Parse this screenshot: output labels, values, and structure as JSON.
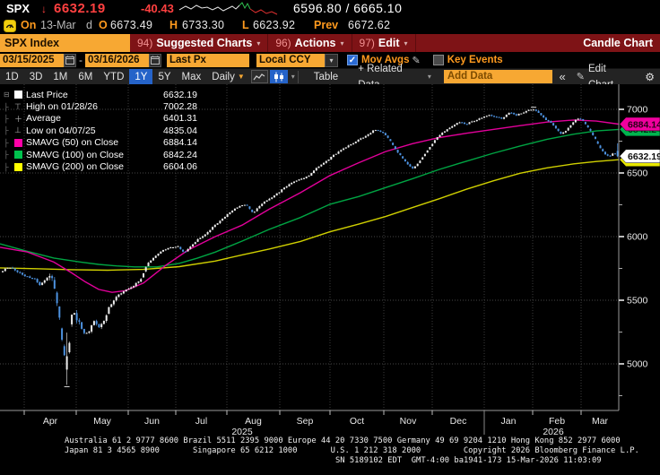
{
  "header": {
    "ticker": "SPX",
    "direction_arrow": "↓",
    "last_price": "6632.19",
    "change": "-40.43",
    "bid_ask": "6596.80 / 6665.10",
    "session": {
      "on_label": "On",
      "date": "13-Mar",
      "freq_flag": "d",
      "open_label": "O",
      "open": "6673.49",
      "high_label": "H",
      "high": "6733.30",
      "low_label": "L",
      "low": "6623.92",
      "prev_label": "Prev",
      "prev": "6672.62"
    },
    "sparkline": {
      "white": [
        [
          0,
          10
        ],
        [
          7,
          6
        ],
        [
          13,
          9
        ],
        [
          19,
          5
        ],
        [
          25,
          8
        ],
        [
          31,
          7
        ],
        [
          37,
          10
        ],
        [
          43,
          7
        ],
        [
          49,
          11
        ],
        [
          55,
          8
        ],
        [
          59,
          6
        ],
        [
          63,
          9
        ],
        [
          67,
          5
        ]
      ],
      "green": [
        [
          67,
          5
        ],
        [
          70,
          2
        ],
        [
          73,
          8
        ],
        [
          76,
          3
        ],
        [
          79,
          9
        ]
      ],
      "red": [
        [
          79,
          9
        ],
        [
          85,
          13
        ],
        [
          91,
          10
        ],
        [
          97,
          14
        ],
        [
          103,
          12
        ],
        [
          109,
          15
        ]
      ]
    }
  },
  "menubar": {
    "security": "SPX Index",
    "items": [
      {
        "num": "94)",
        "label": "Suggested Charts",
        "arrow": "▾"
      },
      {
        "num": "96)",
        "label": "Actions",
        "arrow": "▾"
      },
      {
        "num": "97)",
        "label": "Edit",
        "arrow": "▾"
      }
    ],
    "right_label": "Candle Chart"
  },
  "filterbar": {
    "date_from": "03/15/2025",
    "dash": "-",
    "date_to": "03/16/2026",
    "price_field": "Last Px",
    "currency": "Local CCY",
    "currency_arrow": "▾",
    "mov_avgs_checked": "✓",
    "mov_avgs_label": "Mov Avgs",
    "pencil": "✎",
    "key_events_label": "Key Events"
  },
  "toolbar": {
    "ranges": [
      "1D",
      "3D",
      "1M",
      "6M",
      "YTD",
      "1Y",
      "5Y",
      "Max"
    ],
    "selected_range": "1Y",
    "frequency": "Daily",
    "frequency_arrow": "▼",
    "chart_style_arrow": "▾",
    "table_label": "Table",
    "related_data_label": "+ Related Data",
    "related_arrow": "▾",
    "add_data_placeholder": "Add Data",
    "collapse_label": "«",
    "edit_pencil": "✎",
    "edit_chart_label": "Edit Chart",
    "gear": "⚙"
  },
  "legend": {
    "rows": [
      {
        "marker": "square",
        "color": "#ffffff",
        "label": "Last Price",
        "value": "6632.19"
      },
      {
        "marker": "high",
        "label": "High on 01/28/26",
        "value": "7002.28"
      },
      {
        "marker": "avg",
        "label": "Average",
        "value": "6401.31"
      },
      {
        "marker": "low",
        "label": "Low on 04/07/25",
        "value": "4835.04"
      },
      {
        "marker": "square",
        "color": "#ff00a8",
        "label": "SMAVG (50)  on Close",
        "value": "6884.14"
      },
      {
        "marker": "square",
        "color": "#00c24e",
        "label": "SMAVG (100)  on Close",
        "value": "6842.24"
      },
      {
        "marker": "square",
        "color": "#ffff00",
        "label": "SMAVG (200)  on Close",
        "value": "6604.06"
      }
    ]
  },
  "chart_data": {
    "type": "candle",
    "symbol": "SPX Index",
    "period": "03/15/2025 - 03/16/2026",
    "frequency": "Daily",
    "y_ticks": [
      7000,
      6500,
      6000,
      5500,
      5000
    ],
    "y_minor_ticks": [
      6750,
      6250,
      5750,
      5250,
      4750
    ],
    "x_months": [
      "Apr",
      "May",
      "Jun",
      "Jul",
      "Aug",
      "Sep",
      "Oct",
      "Nov",
      "Dec",
      "Jan",
      "Feb",
      "Mar"
    ],
    "years": [
      {
        "label": "2025",
        "x": 270
      },
      {
        "label": "2026",
        "x": 617
      }
    ],
    "last_price": 6632.19,
    "high_point": {
      "date": "01/28/26",
      "value": 7002.28
    },
    "average": 6401.31,
    "low_point": {
      "date": "04/07/25",
      "value": 4835.04
    },
    "last_candle": {
      "open": 6673.49,
      "high": 6733.3,
      "low": 6623.92,
      "close": 6632.19
    },
    "price_path": [
      [
        0,
        5720
      ],
      [
        10,
        5762
      ],
      [
        18,
        5730
      ],
      [
        25,
        5700
      ],
      [
        38,
        5668
      ],
      [
        45,
        5620
      ],
      [
        52,
        5672
      ],
      [
        58,
        5690
      ],
      [
        62,
        5545
      ],
      [
        66,
        5400
      ],
      [
        70,
        5150
      ],
      [
        73,
        5015
      ],
      [
        75,
        4990
      ],
      [
        78,
        5210
      ],
      [
        81,
        5455
      ],
      [
        85,
        5360
      ],
      [
        90,
        5300
      ],
      [
        95,
        5215
      ],
      [
        100,
        5270
      ],
      [
        105,
        5330
      ],
      [
        110,
        5290
      ],
      [
        116,
        5330
      ],
      [
        122,
        5450
      ],
      [
        130,
        5525
      ],
      [
        140,
        5582
      ],
      [
        150,
        5620
      ],
      [
        158,
        5672
      ],
      [
        165,
        5792
      ],
      [
        172,
        5838
      ],
      [
        180,
        5892
      ],
      [
        190,
        5912
      ],
      [
        198,
        5925
      ],
      [
        205,
        5872
      ],
      [
        212,
        5918
      ],
      [
        220,
        5975
      ],
      [
        230,
        6022
      ],
      [
        240,
        6092
      ],
      [
        250,
        6150
      ],
      [
        260,
        6212
      ],
      [
        268,
        6245
      ],
      [
        275,
        6252
      ],
      [
        282,
        6185
      ],
      [
        290,
        6242
      ],
      [
        298,
        6290
      ],
      [
        306,
        6322
      ],
      [
        315,
        6372
      ],
      [
        325,
        6425
      ],
      [
        335,
        6452
      ],
      [
        345,
        6478
      ],
      [
        352,
        6532
      ],
      [
        362,
        6582
      ],
      [
        370,
        6628
      ],
      [
        380,
        6682
      ],
      [
        390,
        6722
      ],
      [
        400,
        6762
      ],
      [
        410,
        6800
      ],
      [
        418,
        6842
      ],
      [
        425,
        6825
      ],
      [
        432,
        6782
      ],
      [
        440,
        6700
      ],
      [
        448,
        6622
      ],
      [
        455,
        6565
      ],
      [
        461,
        6532
      ],
      [
        468,
        6592
      ],
      [
        475,
        6662
      ],
      [
        482,
        6728
      ],
      [
        490,
        6798
      ],
      [
        498,
        6838
      ],
      [
        505,
        6872
      ],
      [
        512,
        6898
      ],
      [
        520,
        6885
      ],
      [
        528,
        6908
      ],
      [
        536,
        6932
      ],
      [
        544,
        6955
      ],
      [
        552,
        6942
      ],
      [
        560,
        6925
      ],
      [
        568,
        6978
      ],
      [
        575,
        6952
      ],
      [
        582,
        6972
      ],
      [
        590,
        6992
      ],
      [
        596,
        6998
      ],
      [
        602,
        6962
      ],
      [
        608,
        6920
      ],
      [
        614,
        6898
      ],
      [
        620,
        6852
      ],
      [
        626,
        6802
      ],
      [
        632,
        6838
      ],
      [
        638,
        6888
      ],
      [
        644,
        6932
      ],
      [
        650,
        6912
      ],
      [
        656,
        6852
      ],
      [
        662,
        6792
      ],
      [
        668,
        6712
      ],
      [
        674,
        6652
      ],
      [
        679,
        6628
      ],
      [
        684,
        6658
      ],
      [
        690,
        6632
      ]
    ],
    "smavg_50": {
      "name": "SMAVG (50) on Close",
      "color": "#e2009a",
      "current": 6884.14,
      "points": [
        [
          0,
          5916
        ],
        [
          30,
          5880
        ],
        [
          60,
          5800
        ],
        [
          80,
          5715
        ],
        [
          95,
          5645
        ],
        [
          110,
          5585
        ],
        [
          125,
          5562
        ],
        [
          140,
          5575
        ],
        [
          160,
          5635
        ],
        [
          185,
          5775
        ],
        [
          210,
          5895
        ],
        [
          240,
          6000
        ],
        [
          270,
          6090
        ],
        [
          300,
          6215
        ],
        [
          335,
          6345
        ],
        [
          368,
          6480
        ],
        [
          400,
          6580
        ],
        [
          430,
          6668
        ],
        [
          460,
          6730
        ],
        [
          490,
          6778
        ],
        [
          520,
          6812
        ],
        [
          550,
          6842
        ],
        [
          580,
          6872
        ],
        [
          610,
          6900
        ],
        [
          640,
          6916
        ],
        [
          665,
          6908
        ],
        [
          690,
          6884
        ]
      ]
    },
    "smavg_100": {
      "name": "SMAVG (100) on Close",
      "color": "#00a443",
      "current": 6842.24,
      "points": [
        [
          0,
          5944
        ],
        [
          30,
          5885
        ],
        [
          60,
          5832
        ],
        [
          90,
          5800
        ],
        [
          110,
          5782
        ],
        [
          130,
          5770
        ],
        [
          150,
          5762
        ],
        [
          175,
          5762
        ],
        [
          200,
          5790
        ],
        [
          220,
          5830
        ],
        [
          240,
          5878
        ],
        [
          270,
          5965
        ],
        [
          300,
          6056
        ],
        [
          335,
          6150
        ],
        [
          368,
          6254
        ],
        [
          400,
          6315
        ],
        [
          430,
          6385
        ],
        [
          460,
          6455
        ],
        [
          490,
          6528
        ],
        [
          520,
          6592
        ],
        [
          550,
          6655
        ],
        [
          580,
          6712
        ],
        [
          610,
          6765
        ],
        [
          640,
          6805
        ],
        [
          665,
          6830
        ],
        [
          690,
          6842
        ]
      ]
    },
    "smavg_200": {
      "name": "SMAVG (200) on Close",
      "color": "#cfcf00",
      "current": 6604.06,
      "points": [
        [
          0,
          5754
        ],
        [
          40,
          5748
        ],
        [
          80,
          5740
        ],
        [
          120,
          5736
        ],
        [
          160,
          5742
        ],
        [
          200,
          5764
        ],
        [
          240,
          5808
        ],
        [
          270,
          5856
        ],
        [
          300,
          5902
        ],
        [
          335,
          5962
        ],
        [
          368,
          6038
        ],
        [
          400,
          6098
        ],
        [
          430,
          6158
        ],
        [
          460,
          6228
        ],
        [
          490,
          6298
        ],
        [
          520,
          6372
        ],
        [
          550,
          6438
        ],
        [
          580,
          6498
        ],
        [
          610,
          6540
        ],
        [
          640,
          6572
        ],
        [
          665,
          6590
        ],
        [
          690,
          6604
        ]
      ]
    },
    "badges": [
      {
        "color": "#00b44e",
        "text_color": "#00331a",
        "value": "6842.24",
        "price": 6842.24
      },
      {
        "color": "#f0009e",
        "text_color": "#2a0018",
        "value": "6884.14",
        "price": 6884.14
      },
      {
        "color": "#e8e800",
        "text_color": "#333300",
        "value": "6604.06",
        "price": 6604.06
      },
      {
        "color": "#ffffff",
        "text_color": "#111111",
        "value": "6632.19",
        "price": 6632.19
      }
    ]
  },
  "footer": {
    "lines": [
      "Australia 61 2 9777 8600 Brazil 5511 2395 9000 Europe 44 20 7330 7500 Germany 49 69 9204 1210 Hong Kong 852 2977 6000",
      "Japan 81 3 4565 8900       Singapore 65 6212 1000       U.S. 1 212 318 2000         Copyright 2026 Bloomberg Finance L.P.",
      "SN 5189102 EDT  GMT-4:00 ba1941-173 15-Mar-2026 11:03:09"
    ]
  }
}
